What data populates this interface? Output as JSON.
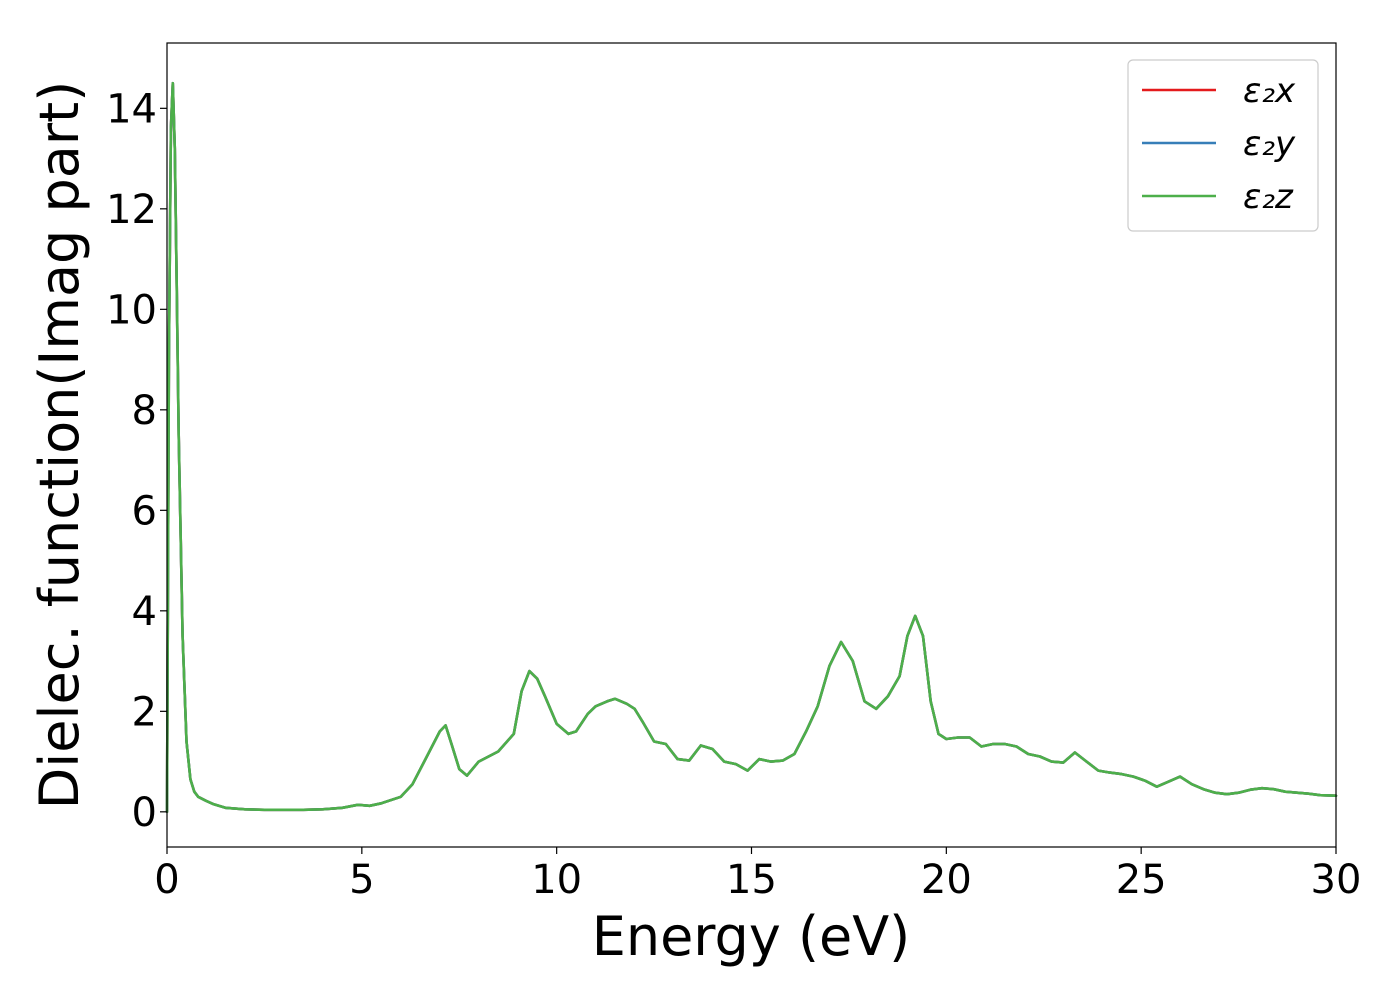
{
  "chart_data": {
    "type": "line",
    "title": "",
    "xlabel": "Energy (eV)",
    "ylabel": "Dielec. function(Imag part)",
    "xlim": [
      0,
      30
    ],
    "ylim": [
      -0.7,
      15.3
    ],
    "xticks": [
      0,
      5,
      10,
      15,
      20,
      25,
      30
    ],
    "yticks": [
      0,
      2,
      4,
      6,
      8,
      10,
      12,
      14
    ],
    "grid": false,
    "legend_position": "top-right",
    "x": [
      0,
      0.05,
      0.1,
      0.15,
      0.2,
      0.25,
      0.3,
      0.4,
      0.5,
      0.6,
      0.7,
      0.8,
      1.0,
      1.2,
      1.5,
      2.0,
      2.5,
      3.0,
      3.5,
      4.0,
      4.5,
      4.9,
      5.2,
      5.5,
      6.0,
      6.3,
      6.6,
      7.0,
      7.15,
      7.3,
      7.5,
      7.7,
      8.0,
      8.5,
      8.9,
      9.1,
      9.3,
      9.5,
      9.7,
      10.0,
      10.3,
      10.5,
      10.8,
      11.0,
      11.3,
      11.5,
      11.8,
      12.0,
      12.2,
      12.5,
      12.8,
      13.1,
      13.4,
      13.7,
      14.0,
      14.3,
      14.6,
      14.9,
      15.2,
      15.5,
      15.8,
      16.1,
      16.4,
      16.7,
      17.0,
      17.3,
      17.6,
      17.9,
      18.2,
      18.5,
      18.8,
      19.0,
      19.2,
      19.4,
      19.6,
      19.8,
      20.0,
      20.3,
      20.6,
      20.9,
      21.2,
      21.5,
      21.8,
      22.1,
      22.4,
      22.7,
      23.0,
      23.3,
      23.6,
      23.9,
      24.2,
      24.5,
      24.8,
      25.1,
      25.4,
      25.7,
      26.0,
      26.3,
      26.6,
      26.9,
      27.2,
      27.5,
      27.8,
      28.1,
      28.4,
      28.7,
      29.0,
      29.3,
      29.6,
      30.0
    ],
    "series": [
      {
        "name": "ε₂x",
        "color": "#e41a1c",
        "y": [
          0,
          9.0,
          13.6,
          14.5,
          13.2,
          10.5,
          7.5,
          3.5,
          1.4,
          0.65,
          0.4,
          0.3,
          0.22,
          0.15,
          0.08,
          0.05,
          0.04,
          0.04,
          0.04,
          0.05,
          0.08,
          0.14,
          0.12,
          0.17,
          0.3,
          0.55,
          1.0,
          1.6,
          1.72,
          1.35,
          0.85,
          0.72,
          1.0,
          1.2,
          1.55,
          2.4,
          2.8,
          2.65,
          2.3,
          1.75,
          1.55,
          1.6,
          1.95,
          2.1,
          2.2,
          2.25,
          2.15,
          2.05,
          1.8,
          1.4,
          1.35,
          1.05,
          1.02,
          1.32,
          1.25,
          1.0,
          0.95,
          0.82,
          1.05,
          1.0,
          1.02,
          1.15,
          1.6,
          2.1,
          2.9,
          3.38,
          3.0,
          2.2,
          2.05,
          2.3,
          2.7,
          3.5,
          3.9,
          3.5,
          2.2,
          1.55,
          1.45,
          1.48,
          1.48,
          1.3,
          1.35,
          1.35,
          1.3,
          1.15,
          1.1,
          1.0,
          0.98,
          1.18,
          1.0,
          0.82,
          0.78,
          0.75,
          0.7,
          0.62,
          0.5,
          0.6,
          0.7,
          0.55,
          0.45,
          0.38,
          0.35,
          0.38,
          0.44,
          0.47,
          0.45,
          0.4,
          0.38,
          0.36,
          0.33,
          0.32
        ]
      },
      {
        "name": "ε₂y",
        "color": "#377eb8",
        "y": [
          0,
          9.0,
          13.6,
          14.5,
          13.2,
          10.5,
          7.5,
          3.5,
          1.4,
          0.65,
          0.4,
          0.3,
          0.22,
          0.15,
          0.08,
          0.05,
          0.04,
          0.04,
          0.04,
          0.05,
          0.08,
          0.14,
          0.12,
          0.17,
          0.3,
          0.55,
          1.0,
          1.6,
          1.72,
          1.35,
          0.85,
          0.72,
          1.0,
          1.2,
          1.55,
          2.4,
          2.8,
          2.65,
          2.3,
          1.75,
          1.55,
          1.6,
          1.95,
          2.1,
          2.2,
          2.25,
          2.15,
          2.05,
          1.8,
          1.4,
          1.35,
          1.05,
          1.02,
          1.32,
          1.25,
          1.0,
          0.95,
          0.82,
          1.05,
          1.0,
          1.02,
          1.15,
          1.6,
          2.1,
          2.9,
          3.38,
          3.0,
          2.2,
          2.05,
          2.3,
          2.7,
          3.5,
          3.9,
          3.5,
          2.2,
          1.55,
          1.45,
          1.48,
          1.48,
          1.3,
          1.35,
          1.35,
          1.3,
          1.15,
          1.1,
          1.0,
          0.98,
          1.18,
          1.0,
          0.82,
          0.78,
          0.75,
          0.7,
          0.62,
          0.5,
          0.6,
          0.7,
          0.55,
          0.45,
          0.38,
          0.35,
          0.38,
          0.44,
          0.47,
          0.45,
          0.4,
          0.38,
          0.36,
          0.33,
          0.32
        ]
      },
      {
        "name": "ε₂z",
        "color": "#4daf4a",
        "y": [
          0,
          9.0,
          13.6,
          14.5,
          13.2,
          10.5,
          7.5,
          3.5,
          1.4,
          0.65,
          0.4,
          0.3,
          0.22,
          0.15,
          0.08,
          0.05,
          0.04,
          0.04,
          0.04,
          0.05,
          0.08,
          0.14,
          0.12,
          0.17,
          0.3,
          0.55,
          1.0,
          1.6,
          1.72,
          1.35,
          0.85,
          0.72,
          1.0,
          1.2,
          1.55,
          2.4,
          2.8,
          2.65,
          2.3,
          1.75,
          1.55,
          1.6,
          1.95,
          2.1,
          2.2,
          2.25,
          2.15,
          2.05,
          1.8,
          1.4,
          1.35,
          1.05,
          1.02,
          1.32,
          1.25,
          1.0,
          0.95,
          0.82,
          1.05,
          1.0,
          1.02,
          1.15,
          1.6,
          2.1,
          2.9,
          3.38,
          3.0,
          2.2,
          2.05,
          2.3,
          2.7,
          3.5,
          3.9,
          3.5,
          2.2,
          1.55,
          1.45,
          1.48,
          1.48,
          1.3,
          1.35,
          1.35,
          1.3,
          1.15,
          1.1,
          1.0,
          0.98,
          1.18,
          1.0,
          0.82,
          0.78,
          0.75,
          0.7,
          0.62,
          0.5,
          0.6,
          0.7,
          0.55,
          0.45,
          0.38,
          0.35,
          0.38,
          0.44,
          0.47,
          0.45,
          0.4,
          0.38,
          0.36,
          0.33,
          0.32
        ]
      }
    ]
  }
}
